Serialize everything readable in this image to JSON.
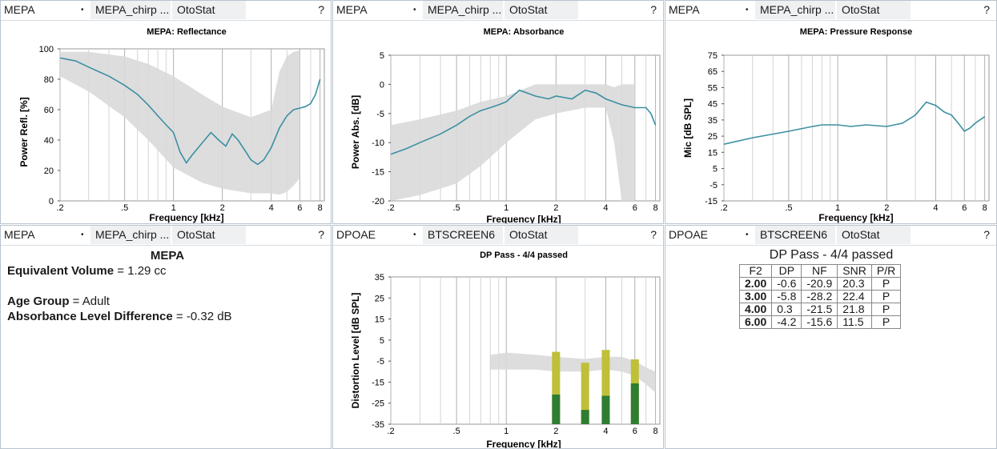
{
  "panels": [
    {
      "header": {
        "module": "MEPA",
        "test": "MEPA_chirp ...",
        "device": "OtoStat",
        "help": "?"
      },
      "chart": {
        "title": "MEPA: Reflectance",
        "xlabel": "Frequency [kHz]",
        "ylabel": "Power Refl. [%]",
        "xticks": [
          ".2",
          ".5",
          "1",
          "2",
          "4",
          "6",
          "8"
        ],
        "yticks": [
          "0",
          "20",
          "40",
          "60",
          "80",
          "100"
        ]
      }
    },
    {
      "header": {
        "module": "MEPA",
        "test": "MEPA_chirp ...",
        "device": "OtoStat",
        "help": "?"
      },
      "chart": {
        "title": "MEPA: Absorbance",
        "xlabel": "Frequency [kHz]",
        "ylabel": "Power Abs. [dB]",
        "xticks": [
          ".2",
          ".5",
          "1",
          "2",
          "4",
          "6",
          "8"
        ],
        "yticks": [
          "-20",
          "-15",
          "-10",
          "-5",
          "0",
          "5"
        ]
      }
    },
    {
      "header": {
        "module": "MEPA",
        "test": "MEPA_chirp ...",
        "device": "OtoStat",
        "help": "?"
      },
      "chart": {
        "title": "MEPA: Pressure Response",
        "xlabel": "Frequency [kHz]",
        "ylabel": "Mic [dB SPL]",
        "xticks": [
          ".2",
          ".5",
          "1",
          "2",
          "4",
          "6",
          "8"
        ],
        "yticks": [
          "-15",
          "-5",
          "5",
          "15",
          "25",
          "35",
          "45",
          "55",
          "65",
          "75"
        ]
      }
    },
    {
      "header": {
        "module": "MEPA",
        "test": "MEPA_chirp ...",
        "device": "OtoStat",
        "help": "?"
      },
      "info": {
        "title": "MEPA",
        "eq_label": "Equivalent Volume",
        "eq_value": " = 1.29 cc",
        "age_label": "Age Group",
        "age_value": " = Adult",
        "ald_label": "Absorbance Level Difference",
        "ald_value": " = -0.32 dB"
      }
    },
    {
      "header": {
        "module": "DPOAE",
        "test": "BTSCREEN6",
        "device": "OtoStat",
        "help": "?"
      },
      "chart": {
        "title": "DP Pass - 4/4 passed",
        "xlabel": "Frequency [kHz]",
        "ylabel": "Distortion Level [dB SPL]",
        "xticks": [
          ".2",
          ".5",
          "1",
          "2",
          "4",
          "6",
          "8"
        ],
        "yticks": [
          "-35",
          "-25",
          "-15",
          "-5",
          "5",
          "15",
          "25",
          "35"
        ]
      }
    },
    {
      "header": {
        "module": "DPOAE",
        "test": "BTSCREEN6",
        "device": "OtoStat",
        "help": "?"
      },
      "table": {
        "title": "DP Pass - 4/4 passed",
        "columns": [
          "F2",
          "DP",
          "NF",
          "SNR",
          "P/R"
        ],
        "rows": [
          [
            "2.00",
            "-0.6",
            "-20.9",
            "20.3",
            "P"
          ],
          [
            "3.00",
            "-5.8",
            "-28.2",
            "22.4",
            "P"
          ],
          [
            "4.00",
            "0.3",
            "-21.5",
            "21.8",
            "P"
          ],
          [
            "6.00",
            "-4.2",
            "-15.6",
            "11.5",
            "P"
          ]
        ]
      }
    }
  ],
  "chart_data": [
    {
      "type": "line",
      "title": "MEPA: Reflectance",
      "xlabel": "Frequency [kHz]",
      "ylabel": "Power Refl. [%]",
      "xscale": "log",
      "xlim": [
        0.2,
        8.5
      ],
      "ylim": [
        0,
        100
      ],
      "series": [
        {
          "x": [
            0.2,
            0.25,
            0.3,
            0.4,
            0.5,
            0.6,
            0.7,
            0.8,
            0.9,
            1.0,
            1.1,
            1.2,
            1.3,
            1.5,
            1.7,
            1.9,
            2.1,
            2.3,
            2.5,
            2.8,
            3.0,
            3.3,
            3.6,
            4.0,
            4.5,
            5.0,
            5.5,
            6.0,
            6.5,
            7.0,
            7.5,
            8.0
          ],
          "y": [
            94,
            92,
            88,
            82,
            76,
            70,
            63,
            56,
            50,
            45,
            32,
            25,
            30,
            38,
            45,
            40,
            36,
            44,
            40,
            32,
            27,
            24,
            27,
            35,
            48,
            56,
            60,
            61,
            62,
            64,
            70,
            80
          ]
        }
      ],
      "norm_band": {
        "x": [
          0.2,
          0.3,
          0.5,
          0.7,
          1.0,
          1.5,
          2.0,
          3.0,
          4.0,
          4.5,
          5.0,
          5.5,
          6.0
        ],
        "upper": [
          98,
          98,
          95,
          90,
          82,
          70,
          62,
          55,
          60,
          85,
          95,
          98,
          99
        ],
        "lower": [
          82,
          72,
          55,
          40,
          22,
          12,
          8,
          5,
          5,
          4,
          6,
          10,
          15
        ]
      },
      "color": "#3c8fa3"
    },
    {
      "type": "line",
      "title": "MEPA: Absorbance",
      "xlabel": "Frequency [kHz]",
      "ylabel": "Power Abs. [dB]",
      "xscale": "log",
      "xlim": [
        0.2,
        8.5
      ],
      "ylim": [
        -20,
        5
      ],
      "series": [
        {
          "x": [
            0.2,
            0.25,
            0.3,
            0.4,
            0.5,
            0.6,
            0.7,
            0.8,
            0.9,
            1.0,
            1.2,
            1.5,
            1.8,
            2.0,
            2.5,
            3.0,
            3.5,
            4.0,
            5.0,
            6.0,
            7.0,
            7.5,
            8.0
          ],
          "y": [
            -12,
            -11,
            -10,
            -8.5,
            -7,
            -5.5,
            -4.5,
            -4,
            -3.5,
            -3,
            -1,
            -2,
            -2.5,
            -2,
            -2.5,
            -1,
            -1.5,
            -2.5,
            -3.5,
            -4,
            -4,
            -5,
            -7
          ]
        }
      ],
      "norm_band": {
        "x": [
          0.2,
          0.3,
          0.5,
          0.7,
          1.0,
          1.5,
          2.0,
          3.0,
          4.0,
          4.5,
          5.0,
          5.5,
          6.0
        ],
        "upper": [
          -7,
          -6,
          -4.5,
          -3,
          -2,
          0,
          0,
          0,
          0,
          -0.5,
          0,
          0,
          0
        ],
        "lower": [
          -20,
          -19,
          -17,
          -14,
          -10,
          -6,
          -5,
          -4,
          -4,
          -10,
          -20,
          -20,
          -20
        ]
      },
      "color": "#3c8fa3"
    },
    {
      "type": "line",
      "title": "MEPA: Pressure Response",
      "xlabel": "Frequency [kHz]",
      "ylabel": "Mic [dB SPL]",
      "xscale": "log",
      "xlim": [
        0.2,
        8.5
      ],
      "ylim": [
        -15,
        75
      ],
      "series": [
        {
          "x": [
            0.2,
            0.3,
            0.5,
            0.7,
            0.8,
            1.0,
            1.2,
            1.5,
            2.0,
            2.5,
            3.0,
            3.5,
            4.0,
            4.5,
            5.0,
            5.5,
            6.0,
            6.5,
            7.0,
            8.0
          ],
          "y": [
            20,
            24,
            28,
            31,
            32,
            32,
            31,
            32,
            31,
            33,
            38,
            46,
            44,
            40,
            38,
            33,
            28,
            30,
            33,
            37
          ]
        }
      ],
      "color": "#3c8fa3"
    },
    {
      "type": "bar",
      "title": "DP Pass - 4/4 passed",
      "xlabel": "Frequency [kHz]",
      "ylabel": "Distortion Level [dB SPL]",
      "xscale": "log",
      "xlim": [
        0.2,
        8.5
      ],
      "ylim": [
        -35,
        35
      ],
      "categories": [
        "2.00",
        "3.00",
        "4.00",
        "6.00"
      ],
      "x": [
        2.0,
        3.0,
        4.0,
        6.0
      ],
      "series": [
        {
          "name": "DP",
          "values": [
            -0.6,
            -5.8,
            0.3,
            -4.2
          ],
          "color": "#bfbf3a"
        },
        {
          "name": "NF",
          "values": [
            -20.9,
            -28.2,
            -21.5,
            -15.6
          ],
          "color": "#2e7d32"
        }
      ],
      "norm_band": {
        "x": [
          0.8,
          1.0,
          1.5,
          2.0,
          3.0,
          4.0,
          5.0,
          6.0,
          7.0,
          8.0
        ],
        "upper": [
          -2,
          -1,
          -2,
          -3,
          -4,
          -3,
          -3,
          -5,
          -8,
          -10
        ],
        "lower": [
          -9,
          -9,
          -9,
          -10,
          -10,
          -9,
          -10,
          -12,
          -16,
          -20
        ]
      }
    }
  ]
}
